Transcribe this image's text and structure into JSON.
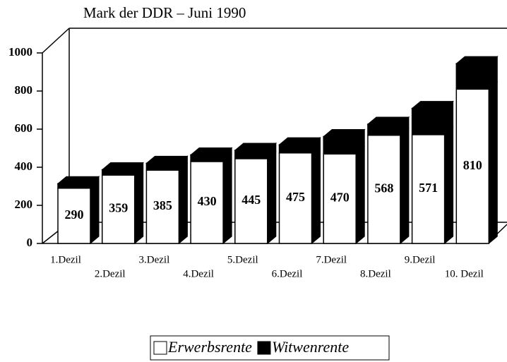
{
  "chart_data": {
    "type": "stacked_bar_3d",
    "title": "Mark der DDR – Juni 1990",
    "categories": [
      "1.Dezil",
      "2.Dezil",
      "3.Dezil",
      "4.Dezil",
      "5.Dezil",
      "6.Dezil",
      "7.Dezil",
      "8.Dezil",
      "9.Dezil",
      "10. Dezil"
    ],
    "series": [
      {
        "name": "Erwerbsrente",
        "color": "#ffffff",
        "values": [
          290,
          359,
          385,
          430,
          445,
          475,
          470,
          568,
          571,
          810
        ]
      },
      {
        "name": "Witwenrente",
        "color": "#000000",
        "values": [
          24,
          28,
          36,
          35,
          44,
          43,
          91,
          58,
          138,
          134
        ]
      }
    ],
    "ylim": [
      0,
      1000
    ],
    "yticks": [
      0,
      200,
      400,
      600,
      800,
      1000
    ],
    "legend": "bottom"
  }
}
